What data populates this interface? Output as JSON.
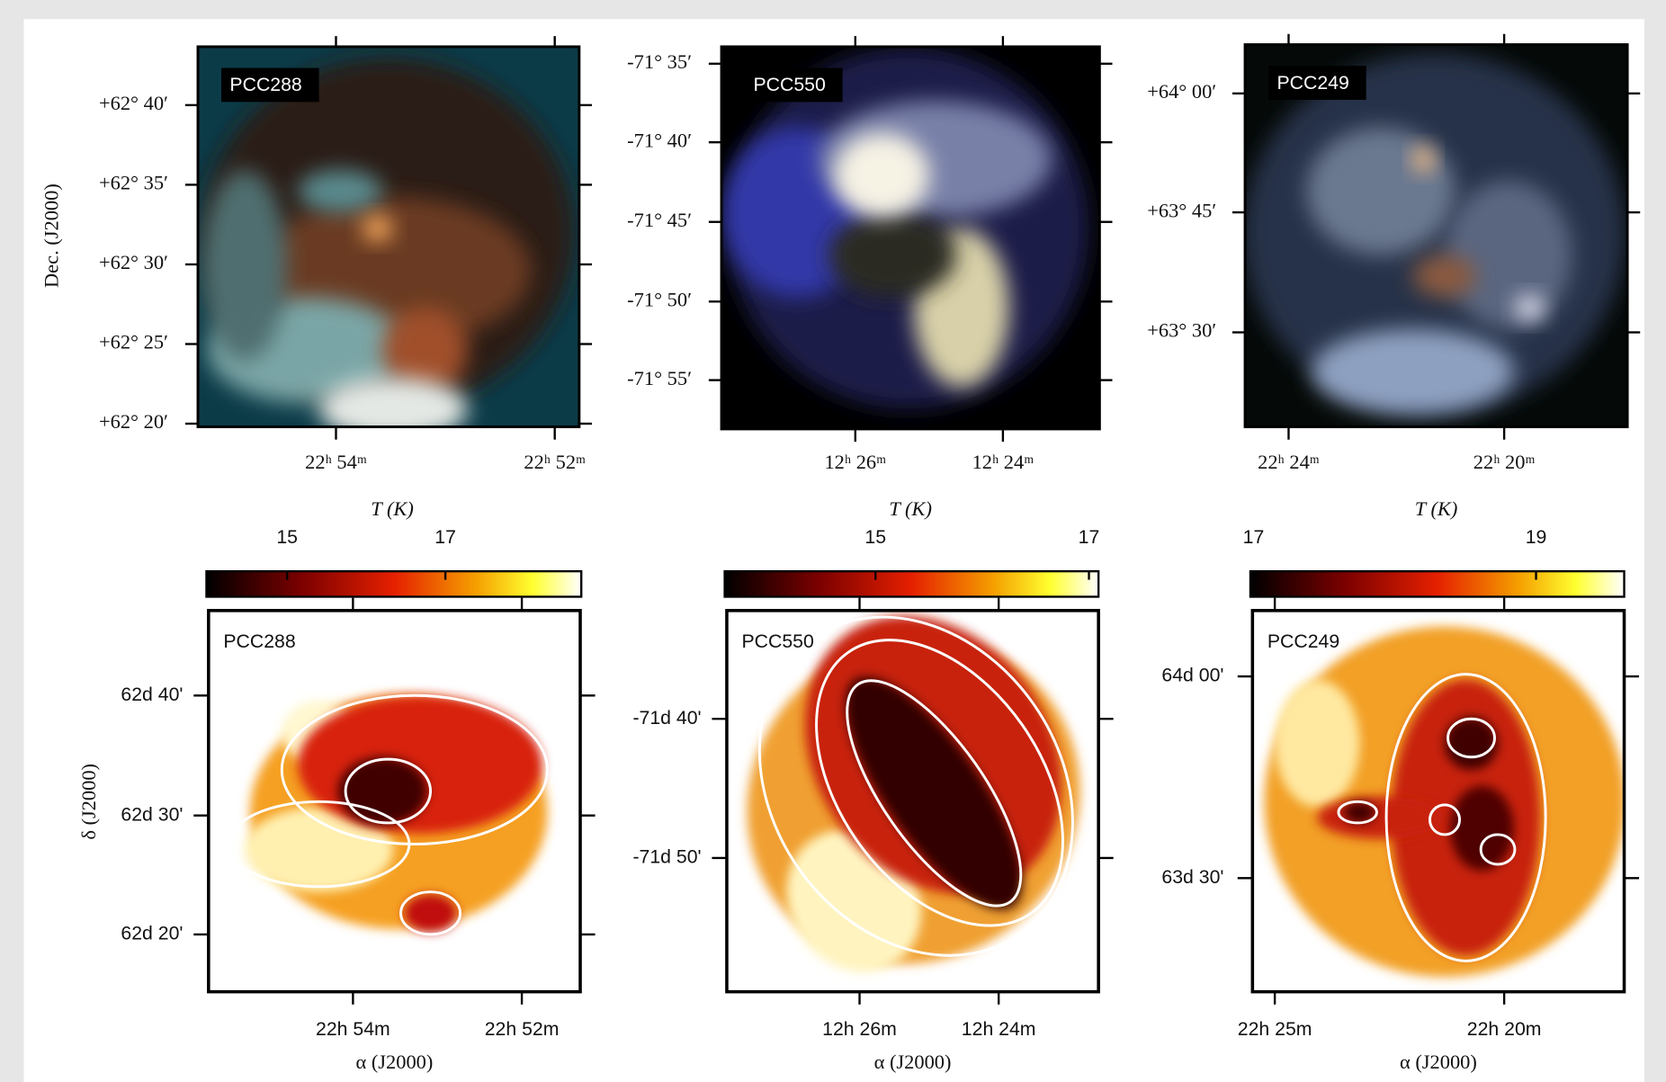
{
  "figure": {
    "y_label_top": "Dec. (J2000)",
    "top_panels": [
      {
        "label": "PCC288",
        "dec_ticks": [
          "+62° 40′",
          "+62° 35′",
          "+62° 30′",
          "+62° 25′",
          "+62° 20′"
        ],
        "ra_ticks": [
          "22ʰ 54ᵐ",
          "22ʰ 52ᵐ"
        ]
      },
      {
        "label": "PCC550",
        "dec_ticks": [
          "-71° 35′",
          "-71° 40′",
          "-71° 45′",
          "-71° 50′",
          "-71° 55′"
        ],
        "ra_ticks": [
          "12ʰ 26ᵐ",
          "12ʰ 24ᵐ"
        ]
      },
      {
        "label": "PCC249",
        "dec_ticks": [
          "+64° 00′",
          "+63° 45′",
          "+63° 30′"
        ],
        "ra_ticks": [
          "22ʰ 24ᵐ",
          "22ʰ 20ᵐ"
        ]
      }
    ],
    "y_label_bottom": "δ (J2000)",
    "bottom_panels": [
      {
        "colorbar_label": "T (K)",
        "colorbar_ticks": [
          15,
          17
        ],
        "label": "PCC288",
        "dec_ticks": [
          "62d 40'",
          "62d 30'",
          "62d 20'"
        ],
        "ra_ticks": [
          "22h 54m",
          "22h 52m"
        ],
        "x_label": "α (J2000)"
      },
      {
        "colorbar_label": "T (K)",
        "colorbar_ticks": [
          15,
          17
        ],
        "label": "PCC550",
        "dec_ticks": [
          "-71d 40'",
          "-71d 50'"
        ],
        "ra_ticks": [
          "12h 26m",
          "12h 24m"
        ],
        "x_label": "α (J2000)"
      },
      {
        "colorbar_label": "T (K)",
        "colorbar_ticks": [
          17,
          19
        ],
        "label": "PCC249",
        "dec_ticks": [
          "64d 00'",
          "63d 30'"
        ],
        "ra_ticks": [
          "22h 25m",
          "22h 20m"
        ],
        "x_label": "α (J2000)"
      }
    ]
  }
}
